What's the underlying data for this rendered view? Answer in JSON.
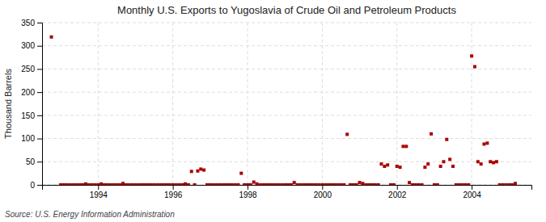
{
  "chart_data": {
    "type": "scatter",
    "title": "Monthly U.S. Exports to Yugoslavia of Crude Oil and Petroleum Products",
    "y_label": "Thousand Barrels",
    "annotations": [
      "Source: U.S. Energy Information Administration"
    ],
    "color": "#AA0000",
    "marker": "square",
    "grid": true,
    "xlim": [
      1992.5,
      2005.6
    ],
    "xticks": [
      1994,
      1996,
      1998,
      2000,
      2002,
      2004
    ],
    "ylim": [
      0,
      350
    ],
    "yticks": [
      0,
      50,
      100,
      150,
      200,
      250,
      300,
      350
    ],
    "x": [
      1992.75,
      1993.0,
      1993.083,
      1993.167,
      1993.25,
      1993.333,
      1993.417,
      1993.5,
      1993.583,
      1993.667,
      1993.75,
      1993.833,
      1993.917,
      1994.0,
      1994.083,
      1994.167,
      1994.25,
      1994.333,
      1994.417,
      1994.5,
      1994.583,
      1994.667,
      1994.75,
      1994.833,
      1994.917,
      1995.0,
      1995.083,
      1995.167,
      1995.25,
      1995.333,
      1995.417,
      1995.5,
      1995.583,
      1995.667,
      1995.75,
      1995.833,
      1995.917,
      1996.0,
      1996.083,
      1996.167,
      1996.25,
      1996.333,
      1996.417,
      1996.5,
      1996.583,
      1996.667,
      1996.75,
      1996.833,
      1996.917,
      1997.0,
      1997.083,
      1997.167,
      1997.25,
      1997.333,
      1997.417,
      1997.5,
      1997.583,
      1997.667,
      1997.75,
      1997.833,
      1997.917,
      1998.0,
      1998.083,
      1998.167,
      1998.25,
      1998.333,
      1998.417,
      1998.5,
      1998.583,
      1998.667,
      1998.75,
      1998.833,
      1998.917,
      1999.0,
      1999.083,
      1999.167,
      1999.25,
      1999.333,
      1999.417,
      1999.5,
      1999.583,
      1999.667,
      1999.75,
      1999.833,
      1999.917,
      2000.0,
      2000.083,
      2000.167,
      2000.25,
      2000.333,
      2000.417,
      2000.5,
      2000.583,
      2000.667,
      2000.75,
      2000.833,
      2000.917,
      2001.0,
      2001.083,
      2001.167,
      2001.25,
      2001.333,
      2001.417,
      2001.5,
      2001.583,
      2001.667,
      2001.75,
      2001.833,
      2001.917,
      2002.0,
      2002.083,
      2002.167,
      2002.25,
      2002.333,
      2002.417,
      2002.5,
      2002.583,
      2002.667,
      2002.75,
      2002.833,
      2002.917,
      2003.0,
      2003.083,
      2003.167,
      2003.25,
      2003.333,
      2003.417,
      2003.5,
      2003.583,
      2003.667,
      2003.75,
      2003.833,
      2003.917,
      2004.0,
      2004.083,
      2004.167,
      2004.25,
      2004.333,
      2004.417,
      2004.5,
      2004.583,
      2004.667,
      2004.75,
      2004.833,
      2004.917,
      2005.0,
      2005.083,
      2005.167
    ],
    "values": [
      319,
      0,
      0,
      0,
      0,
      0,
      0,
      0,
      0,
      2,
      0,
      0,
      0,
      0,
      2,
      0,
      0,
      0,
      0,
      0,
      0,
      3,
      0,
      0,
      0,
      0,
      0,
      0,
      0,
      0,
      0,
      0,
      0,
      0,
      0,
      0,
      0,
      0,
      0,
      0,
      0,
      2,
      0,
      29,
      0,
      30,
      34,
      32,
      0,
      0,
      0,
      0,
      0,
      0,
      0,
      0,
      0,
      0,
      0,
      25,
      0,
      0,
      0,
      6,
      2,
      0,
      0,
      0,
      0,
      0,
      0,
      0,
      0,
      0,
      0,
      0,
      5,
      0,
      0,
      0,
      0,
      0,
      0,
      0,
      0,
      0,
      0,
      0,
      0,
      0,
      0,
      0,
      0,
      109,
      0,
      0,
      0,
      5,
      3,
      0,
      0,
      0,
      0,
      0,
      45,
      40,
      43,
      0,
      0,
      40,
      38,
      83,
      83,
      5,
      0,
      0,
      0,
      0,
      38,
      45,
      110,
      0,
      0,
      40,
      50,
      98,
      55,
      40,
      0,
      0,
      0,
      0,
      0,
      278,
      255,
      50,
      45,
      88,
      90,
      50,
      48,
      50,
      0,
      0,
      0,
      0,
      0,
      3
    ]
  }
}
